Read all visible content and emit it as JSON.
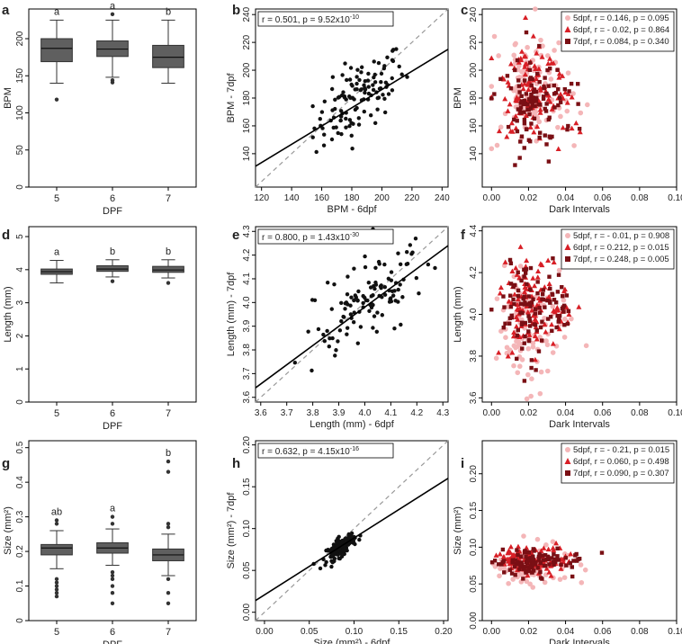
{
  "figure": {
    "panel_letters": [
      "a",
      "b",
      "c",
      "d",
      "e",
      "f",
      "g",
      "h",
      "i"
    ]
  },
  "colors": {
    "box_fill": "#5f5f5f",
    "dpf5": "#f4b6b8",
    "dpf6": "#d81f26",
    "dpf7": "#7a0f14",
    "points": "#111111",
    "fit_line": "#000000",
    "identity_line": "#999999"
  },
  "chart_data": [
    {
      "id": "a",
      "type": "box",
      "xlabel": "DPF",
      "ylabel": "BPM",
      "categories": [
        "5",
        "6",
        "7"
      ],
      "ylim": [
        0,
        240
      ],
      "yticks": [
        "0",
        "50",
        "100",
        "150",
        "200"
      ],
      "letters": [
        "a",
        "a",
        "b"
      ],
      "boxes": [
        {
          "whislo": 140,
          "q1": 169,
          "med": 187,
          "q3": 200,
          "whishi": 225,
          "fliers": [
            118
          ]
        },
        {
          "whislo": 148,
          "q1": 176,
          "med": 186,
          "q3": 197,
          "whishi": 225,
          "fliers": [
            141,
            144,
            233
          ]
        },
        {
          "whislo": 140,
          "q1": 161,
          "med": 175,
          "q3": 191,
          "whishi": 225,
          "fliers": []
        }
      ]
    },
    {
      "id": "b",
      "type": "scatter",
      "xlabel": "BPM - 6dpf",
      "ylabel": "BPM - 7dpf",
      "annotation": "r = 0.501, p = 9.52x10",
      "annotation_exp": "-10",
      "xlim": [
        116,
        244
      ],
      "ylim": [
        116,
        244
      ],
      "xticks": [
        120,
        140,
        160,
        180,
        200,
        220,
        240
      ],
      "yticks": [
        140,
        160,
        180,
        200,
        220,
        240
      ],
      "fit": {
        "x": [
          116,
          244
        ],
        "y": [
          131,
          215
        ]
      },
      "n": 120,
      "center": [
        185,
        180
      ],
      "spread": [
        15,
        18
      ]
    },
    {
      "id": "c",
      "type": "scatter",
      "xlabel": "Dark Intervals",
      "ylabel": "BPM",
      "xlim": [
        -0.005,
        0.1
      ],
      "ylim": [
        116,
        244
      ],
      "xticks": [
        "0.00",
        "0.02",
        "0.04",
        "0.06",
        "0.08",
        "0.10"
      ],
      "yticks": [
        "140",
        "160",
        "180",
        "200",
        "220",
        "240"
      ],
      "series": [
        {
          "name": "5dpf, r = 0.146, p = 0.095",
          "marker": "circle",
          "center": [
            0.02,
            185
          ],
          "spread": [
            0.012,
            17
          ]
        },
        {
          "name": "6dpf, r = - 0.02, p = 0.864",
          "marker": "triangle",
          "center": [
            0.02,
            187
          ],
          "spread": [
            0.012,
            17
          ]
        },
        {
          "name": "7dpf, r = 0.084, p = 0.340",
          "marker": "square",
          "center": [
            0.022,
            175
          ],
          "spread": [
            0.012,
            17
          ]
        }
      ]
    },
    {
      "id": "d",
      "type": "box",
      "xlabel": "DPF",
      "ylabel": "Length (mm)",
      "categories": [
        "5",
        "6",
        "7"
      ],
      "ylim": [
        0,
        5.3
      ],
      "yticks": [
        "0",
        "1",
        "2",
        "3",
        "4",
        "5"
      ],
      "letters": [
        "a",
        "b",
        "b"
      ],
      "boxes": [
        {
          "whislo": 3.6,
          "q1": 3.86,
          "med": 3.94,
          "q3": 4.02,
          "whishi": 4.28,
          "fliers": []
        },
        {
          "whislo": 3.78,
          "q1": 3.95,
          "med": 4.02,
          "q3": 4.12,
          "whishi": 4.3,
          "fliers": [
            3.65
          ]
        },
        {
          "whislo": 3.75,
          "q1": 3.92,
          "med": 3.99,
          "q3": 4.1,
          "whishi": 4.3,
          "fliers": [
            3.6
          ]
        }
      ]
    },
    {
      "id": "e",
      "type": "scatter",
      "xlabel": "Length (mm) - 6dpf",
      "ylabel": "Length (mm) - 7dpf",
      "annotation": "r = 0.800, p = 1.43x10",
      "annotation_exp": "-30",
      "xlim": [
        3.58,
        4.32
      ],
      "ylim": [
        3.58,
        4.32
      ],
      "xticks": [
        "3.6",
        "3.7",
        "3.8",
        "3.9",
        "4.0",
        "4.1",
        "4.2",
        "4.3"
      ],
      "yticks": [
        "3.6",
        "3.7",
        "3.8",
        "3.9",
        "4.0",
        "4.1",
        "4.2",
        "4.3"
      ],
      "fit": {
        "x": [
          3.58,
          4.32
        ],
        "y": [
          3.64,
          4.24
        ]
      },
      "n": 120,
      "center": [
        4.0,
        4.0
      ],
      "spread": [
        0.12,
        0.13
      ]
    },
    {
      "id": "f",
      "type": "scatter",
      "xlabel": "Dark Intervals",
      "ylabel": "Length (mm)",
      "xlim": [
        -0.005,
        0.1
      ],
      "ylim": [
        3.58,
        4.42
      ],
      "xticks": [
        "0.00",
        "0.02",
        "0.04",
        "0.06",
        "0.08",
        "0.10"
      ],
      "yticks": [
        "3.6",
        "3.8",
        "4.0",
        "4.2",
        "4.4"
      ],
      "series": [
        {
          "name": "5dpf, r = - 0.01, p = 0.908",
          "marker": "circle",
          "center": [
            0.018,
            3.95
          ],
          "spread": [
            0.012,
            0.12
          ]
        },
        {
          "name": "6dpf, r = 0.212, p = 0.015",
          "marker": "triangle",
          "center": [
            0.02,
            4.05
          ],
          "spread": [
            0.012,
            0.12
          ]
        },
        {
          "name": "7dpf, r = 0.248, p = 0.005",
          "marker": "square",
          "center": [
            0.022,
            4.02
          ],
          "spread": [
            0.012,
            0.12
          ]
        }
      ]
    },
    {
      "id": "g",
      "type": "box",
      "xlabel": "DPF",
      "ylabel": "Size (mm²)",
      "categories": [
        "5",
        "6",
        "7"
      ],
      "ylim": [
        0,
        0.52
      ],
      "yticks": [
        "0",
        "0.1",
        "0.2",
        "0.3",
        "0.4",
        "0.5"
      ],
      "letters": [
        "ab",
        "a",
        "b"
      ],
      "boxes": [
        {
          "whislo": 0.15,
          "q1": 0.19,
          "med": 0.21,
          "q3": 0.22,
          "whishi": 0.26,
          "fliers": [
            0.07,
            0.08,
            0.09,
            0.1,
            0.11,
            0.12,
            0.28,
            0.29
          ]
        },
        {
          "whislo": 0.16,
          "q1": 0.195,
          "med": 0.21,
          "q3": 0.225,
          "whishi": 0.265,
          "fliers": [
            0.05,
            0.08,
            0.1,
            0.12,
            0.13,
            0.14,
            0.28,
            0.3
          ]
        },
        {
          "whislo": 0.13,
          "q1": 0.173,
          "med": 0.19,
          "q3": 0.207,
          "whishi": 0.25,
          "fliers": [
            0.05,
            0.08,
            0.12,
            0.27,
            0.28,
            0.43,
            0.46
          ]
        }
      ]
    },
    {
      "id": "h",
      "type": "scatter",
      "xlabel": "Size (mm²) - 6dpf",
      "ylabel": "Size (mm²) - 7dpf",
      "annotation": "r = 0.632, p = 4.15x10",
      "annotation_exp": "-16",
      "xlim": [
        -0.01,
        0.205
      ],
      "ylim": [
        -0.01,
        0.205
      ],
      "xticks": [
        "0.00",
        "0.05",
        "0.10",
        "0.15",
        "0.20"
      ],
      "yticks": [
        "0.00",
        "0.05",
        "0.10",
        "0.15",
        "0.20"
      ],
      "fit": {
        "x": [
          -0.01,
          0.205
        ],
        "y": [
          0.014,
          0.16
        ]
      },
      "n": 120,
      "center": [
        0.085,
        0.078
      ],
      "spread": [
        0.008,
        0.008
      ]
    },
    {
      "id": "i",
      "type": "scatter",
      "xlabel": "Dark Intervals",
      "ylabel": "Size (mm²)",
      "xlim": [
        -0.005,
        0.1
      ],
      "ylim": [
        0.0,
        0.245
      ],
      "xticks": [
        "0.00",
        "0.02",
        "0.04",
        "0.06",
        "0.08",
        "0.10"
      ],
      "yticks": [
        "0.00",
        "0.05",
        "0.10",
        "0.15",
        "0.20"
      ],
      "series": [
        {
          "name": "5dpf, r = - 0.21, p = 0.015",
          "marker": "circle",
          "center": [
            0.02,
            0.075
          ],
          "spread": [
            0.012,
            0.012
          ]
        },
        {
          "name": "6dpf, r = 0.060, p = 0.498",
          "marker": "triangle",
          "center": [
            0.02,
            0.082
          ],
          "spread": [
            0.012,
            0.009
          ]
        },
        {
          "name": "7dpf, r = 0.090, p = 0.307",
          "marker": "square",
          "center": [
            0.022,
            0.078
          ],
          "spread": [
            0.012,
            0.009
          ]
        }
      ]
    }
  ]
}
